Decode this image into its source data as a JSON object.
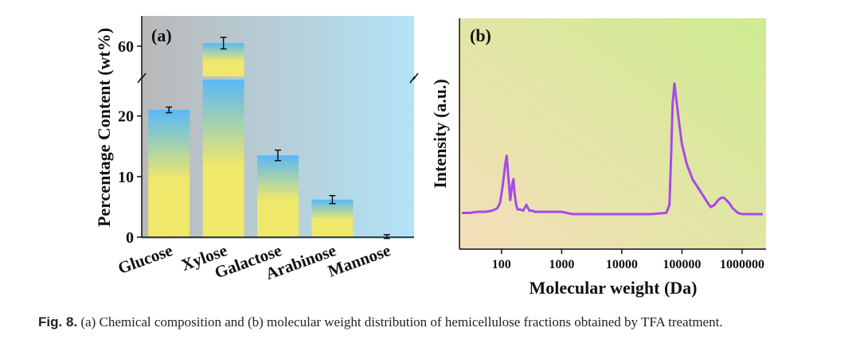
{
  "chart_data": [
    {
      "panel_label": "(a)",
      "type": "bar",
      "categories": [
        "Glucose",
        "Xylose",
        "Galactose",
        "Arabinose",
        "Mannose"
      ],
      "values": [
        21.0,
        60.5,
        13.5,
        6.2,
        0.1
      ],
      "errors": [
        0.2,
        0.7,
        0.6,
        0.4,
        0.05
      ],
      "ylabel": "Percentage Content (wt%)",
      "xlabel": "",
      "y_ticks": [
        "0",
        "10",
        "20",
        "60"
      ],
      "axis_break": [
        26,
        55
      ],
      "ylim": [
        0,
        65
      ],
      "bar_gradient": [
        "#58b8f8",
        "#f0e86a"
      ],
      "background_gradient": [
        "#b9b9b9",
        "#b3e3f7"
      ]
    },
    {
      "panel_label": "(b)",
      "type": "line",
      "xlabel": "Molecular weight (Da)",
      "ylabel": "Intensity (a.u.)",
      "x_scale": "log",
      "xlim": [
        20,
        2500000
      ],
      "x_ticks": [
        "100",
        "1000",
        "10000",
        "100000",
        "1000000"
      ],
      "ylim": [
        0,
        1.25
      ],
      "line_color": "#a64ae8",
      "background_gradient": [
        "#f5dfba",
        "#cdec90"
      ],
      "series": [
        {
          "x": [
            22,
            30,
            40,
            55,
            70,
            85,
            95,
            105,
            115,
            122,
            130,
            140,
            150,
            158,
            165,
            175,
            185,
            200,
            230,
            260,
            290,
            320,
            360,
            420,
            500,
            600,
            700,
            850,
            1000,
            1500,
            3000,
            10000,
            30000,
            55000,
            62000,
            66000,
            70000,
            75000,
            80000,
            90000,
            100000,
            120000,
            150000,
            200000,
            250000,
            300000,
            350000,
            400000,
            450000,
            500000,
            600000,
            700000,
            850000,
            1000000,
            1500000,
            2200000
          ],
          "y": [
            0.01,
            0.01,
            0.02,
            0.02,
            0.03,
            0.05,
            0.1,
            0.25,
            0.42,
            0.5,
            0.32,
            0.12,
            0.25,
            0.3,
            0.18,
            0.08,
            0.04,
            0.04,
            0.03,
            0.08,
            0.03,
            0.03,
            0.02,
            0.02,
            0.02,
            0.02,
            0.02,
            0.02,
            0.02,
            0.0,
            0.0,
            0.0,
            0.0,
            0.01,
            0.08,
            0.5,
            0.95,
            1.12,
            1.0,
            0.78,
            0.6,
            0.43,
            0.3,
            0.2,
            0.12,
            0.06,
            0.08,
            0.12,
            0.14,
            0.14,
            0.1,
            0.05,
            0.01,
            0.0,
            0.0,
            0.0
          ]
        }
      ]
    }
  ],
  "caption": {
    "label": "Fig. 8.",
    "text": "(a) Chemical composition and (b) molecular weight distribution of hemicellulose fractions obtained by TFA treatment."
  }
}
